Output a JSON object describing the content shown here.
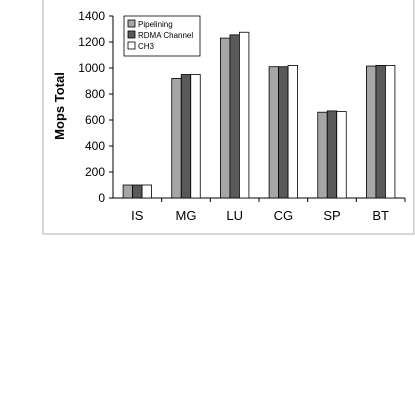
{
  "chart_data": {
    "type": "bar",
    "title": "",
    "xlabel": "",
    "ylabel": "Mops Total",
    "ylim": [
      0,
      1400
    ],
    "yticks": [
      0,
      200,
      400,
      600,
      800,
      1000,
      1200,
      1400
    ],
    "grid": false,
    "legend_position": "top-left",
    "categories": [
      "IS",
      "MG",
      "LU",
      "CG",
      "SP",
      "BT"
    ],
    "series": [
      {
        "name": "Pipelining",
        "color": "#a6a6a6",
        "values": [
          100,
          920,
          1230,
          1010,
          660,
          1015
        ]
      },
      {
        "name": "RDMA Channel",
        "color": "#595959",
        "values": [
          100,
          950,
          1255,
          1010,
          670,
          1020
        ]
      },
      {
        "name": "CH3",
        "color": "#ffffff",
        "values": [
          100,
          950,
          1275,
          1020,
          665,
          1020
        ]
      }
    ]
  }
}
